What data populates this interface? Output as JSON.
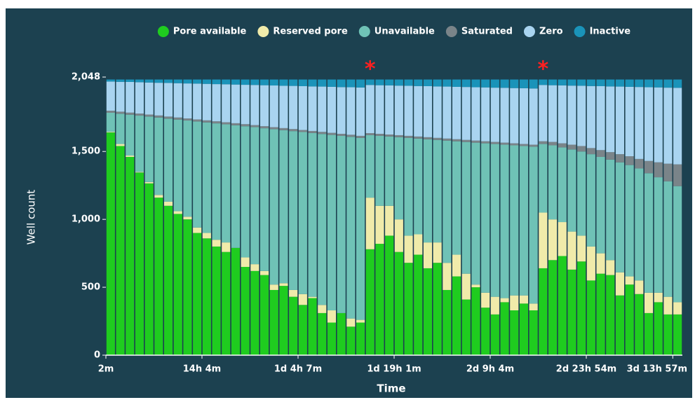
{
  "chart_data": {
    "type": "stacked_bar",
    "x_label": "Time",
    "y_label": "Well count",
    "categories": [
      "2m",
      null,
      null,
      null,
      null,
      null,
      null,
      null,
      null,
      null,
      "14h 4m",
      null,
      null,
      null,
      null,
      null,
      null,
      null,
      null,
      null,
      "1d 4h 7m",
      null,
      null,
      null,
      null,
      null,
      null,
      null,
      null,
      null,
      "1d 19h 1m",
      null,
      null,
      null,
      null,
      null,
      null,
      null,
      null,
      null,
      "2d 9h 4m",
      null,
      null,
      null,
      null,
      null,
      null,
      null,
      null,
      null,
      "2d 23h 54m",
      null,
      null,
      null,
      null,
      null,
      null,
      null,
      null,
      "3d 13h 57m"
    ],
    "ylim": [
      0,
      2048
    ],
    "yticks": [
      0,
      500,
      {
        "value": 1000,
        "label": "1,000"
      },
      {
        "value": 1500,
        "label": "1,500"
      },
      {
        "value": 2048,
        "label": "2,048"
      }
    ],
    "grid": false,
    "legend": "top",
    "annotations": [
      {
        "label": "*",
        "category_index": 27,
        "color": "#ff2020"
      },
      {
        "label": "*",
        "category_index": 45,
        "color": "#ff2020"
      }
    ],
    "series": [
      {
        "name": "Pore available",
        "color": "#1fcc1f",
        "values": [
          1640,
          1540,
          1460,
          1345,
          1265,
          1160,
          1100,
          1040,
          1000,
          900,
          860,
          800,
          760,
          790,
          650,
          620,
          590,
          480,
          510,
          430,
          370,
          420,
          310,
          240,
          310,
          210,
          240,
          780,
          820,
          880,
          760,
          680,
          740,
          640,
          680,
          480,
          580,
          410,
          500,
          350,
          300,
          390,
          330,
          380,
          330,
          640,
          700,
          730,
          630,
          690,
          550,
          600,
          590,
          440,
          520,
          450,
          310,
          390,
          300,
          300
        ]
      },
      {
        "name": "Reserved pore",
        "color": "#f0ebaa",
        "values": [
          5,
          15,
          10,
          5,
          10,
          20,
          30,
          20,
          20,
          40,
          40,
          50,
          70,
          0,
          70,
          50,
          30,
          40,
          20,
          50,
          80,
          10,
          60,
          90,
          0,
          60,
          20,
          380,
          280,
          220,
          240,
          200,
          150,
          190,
          150,
          200,
          160,
          190,
          20,
          110,
          130,
          30,
          110,
          60,
          50,
          410,
          300,
          250,
          280,
          190,
          250,
          150,
          110,
          170,
          60,
          100,
          150,
          70,
          130,
          90
        ]
      },
      {
        "name": "Unavailable",
        "color": "#6fc2b6",
        "values": [
          140,
          223,
          301,
          414,
          482,
          570,
          612,
          675,
          708,
          781,
          814,
          857,
          870,
          903,
          966,
          1009,
          1051,
          1144,
          1127,
          1170,
          1193,
          1206,
          1259,
          1292,
          1305,
          1338,
          1340,
          460,
          515,
          510,
          605,
          720,
          705,
          760,
          755,
          900,
          835,
          970,
          1045,
          1100,
          1125,
          1130,
          1105,
          1100,
          1155,
          505,
          545,
          550,
          605,
          620,
          680,
          710,
          740,
          810,
          820,
          825,
          880,
          850,
          850,
          855
        ]
      },
      {
        "name": "Saturated",
        "color": "#7a8489",
        "values": [
          15,
          15,
          15,
          15,
          15,
          15,
          15,
          15,
          15,
          15,
          15,
          15,
          15,
          15,
          15,
          15,
          15,
          15,
          15,
          15,
          15,
          15,
          15,
          15,
          15,
          15,
          15,
          15,
          15,
          15,
          15,
          15,
          15,
          15,
          15,
          15,
          15,
          15,
          15,
          15,
          15,
          15,
          15,
          15,
          15,
          20,
          25,
          30,
          35,
          40,
          45,
          50,
          55,
          60,
          65,
          70,
          90,
          110,
          130,
          160
        ]
      },
      {
        "name": "Zero",
        "color": "#a9d4f0",
        "values": [
          215,
          220,
          226,
          231,
          236,
          241,
          248,
          253,
          258,
          264,
          269,
          274,
          280,
          285,
          290,
          296,
          302,
          307,
          312,
          318,
          323,
          328,
          334,
          339,
          344,
          350,
          356,
          355,
          358,
          362,
          365,
          369,
          372,
          376,
          379,
          383,
          386,
          390,
          393,
          397,
          400,
          404,
          407,
          411,
          414,
          415,
          418,
          427,
          435,
          444,
          457,
          471,
          484,
          498,
          511,
          530,
          543,
          552,
          560,
          564
        ]
      },
      {
        "name": "Inactive",
        "color": "#1a93b9",
        "values": [
          15,
          17,
          18,
          20,
          22,
          24,
          25,
          27,
          29,
          30,
          32,
          34,
          35,
          37,
          39,
          40,
          42,
          44,
          46,
          47,
          49,
          51,
          52,
          54,
          56,
          57,
          59,
          40,
          42,
          43,
          45,
          46,
          48,
          49,
          51,
          52,
          54,
          55,
          57,
          58,
          60,
          61,
          63,
          64,
          66,
          40,
          42,
          43,
          45,
          46,
          48,
          49,
          51,
          52,
          54,
          55,
          57,
          58,
          60,
          61
        ]
      }
    ]
  }
}
